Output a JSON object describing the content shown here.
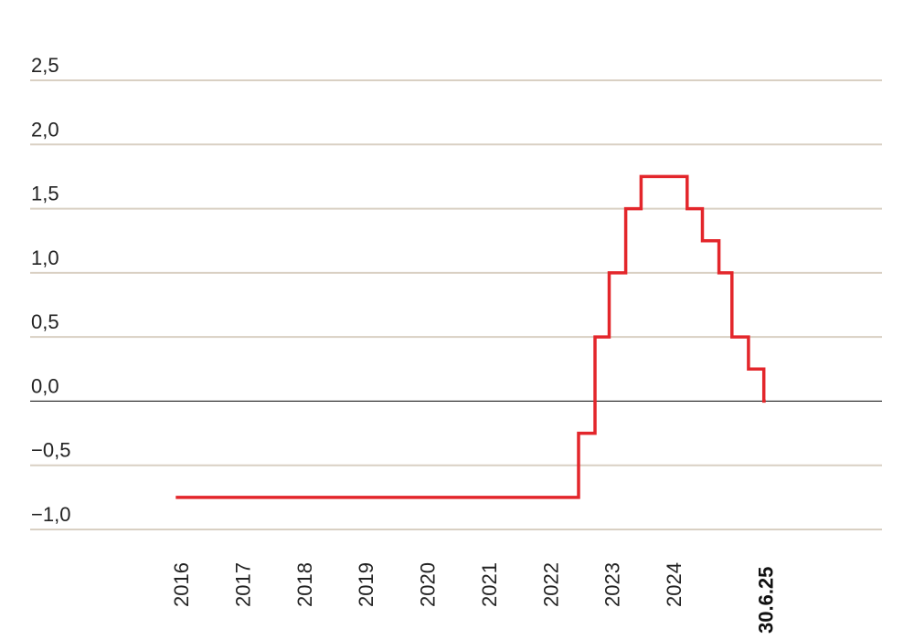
{
  "chart_data": {
    "type": "line",
    "step": true,
    "ylim": [
      -1.0,
      2.5
    ],
    "yticks": [
      {
        "value": 2.5,
        "label": "2,5"
      },
      {
        "value": 2.0,
        "label": "2,0"
      },
      {
        "value": 1.5,
        "label": "1,5"
      },
      {
        "value": 1.0,
        "label": "1,0"
      },
      {
        "value": 0.5,
        "label": "0,5"
      },
      {
        "value": 0.0,
        "label": "0,0"
      },
      {
        "value": -0.5,
        "label": "−0,5"
      },
      {
        "value": -1.0,
        "label": "−1,0"
      }
    ],
    "xticks": [
      {
        "value": "2016-01-01",
        "label": "2016",
        "bold": false
      },
      {
        "value": "2017-01-01",
        "label": "2017",
        "bold": false
      },
      {
        "value": "2018-01-01",
        "label": "2018",
        "bold": false
      },
      {
        "value": "2019-01-01",
        "label": "2019",
        "bold": false
      },
      {
        "value": "2020-01-01",
        "label": "2020",
        "bold": false
      },
      {
        "value": "2021-01-01",
        "label": "2021",
        "bold": false
      },
      {
        "value": "2022-01-01",
        "label": "2022",
        "bold": false
      },
      {
        "value": "2023-01-01",
        "label": "2023",
        "bold": false
      },
      {
        "value": "2024-01-01",
        "label": "2024",
        "bold": false
      },
      {
        "value": "2025-06-30",
        "label": "30.6.25",
        "bold": true
      }
    ],
    "grid": true,
    "series": [
      {
        "color": "#e3262b",
        "points": [
          {
            "date": "2015-12-01",
            "value": -0.75
          },
          {
            "date": "2022-06-16",
            "value": -0.25
          },
          {
            "date": "2022-09-22",
            "value": 0.5
          },
          {
            "date": "2022-12-15",
            "value": 1.0
          },
          {
            "date": "2023-03-23",
            "value": 1.5
          },
          {
            "date": "2023-06-22",
            "value": 1.75
          },
          {
            "date": "2024-03-21",
            "value": 1.5
          },
          {
            "date": "2024-06-20",
            "value": 1.25
          },
          {
            "date": "2024-09-26",
            "value": 1.0
          },
          {
            "date": "2024-12-12",
            "value": 0.5
          },
          {
            "date": "2025-03-20",
            "value": 0.25
          },
          {
            "date": "2025-06-19",
            "value": 0.0
          },
          {
            "date": "2025-06-30",
            "value": 0.0
          }
        ]
      }
    ]
  }
}
